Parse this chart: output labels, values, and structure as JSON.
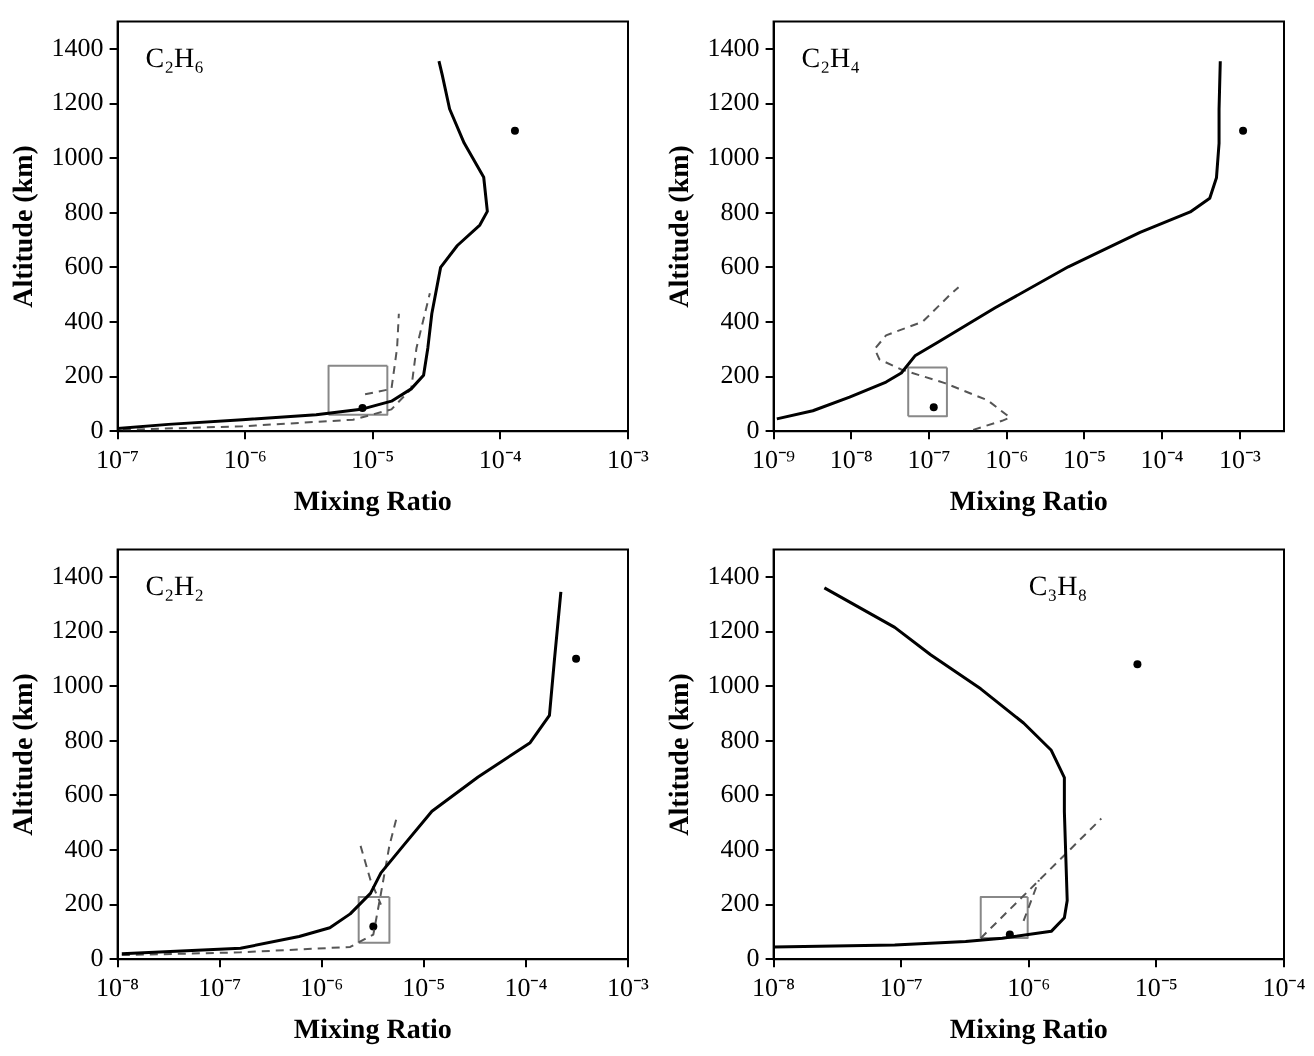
{
  "chart_data": [
    {
      "type": "line",
      "annotations": [
        "C₂H₆"
      ],
      "xlabel": "Mixing Ratio",
      "ylabel": "Altitude (km)",
      "log": "x",
      "xlim": [
        1e-07,
        0.001
      ],
      "xticks": [
        {
          "value": 1e-07,
          "label": "10⁻⁷"
        },
        {
          "value": 1e-06,
          "label": "10⁻⁶"
        },
        {
          "value": 1e-05,
          "label": "10⁻⁵"
        },
        {
          "value": 0.0001,
          "label": "10⁻⁴"
        },
        {
          "value": 0.001,
          "label": "10⁻³"
        }
      ],
      "ylim": [
        0,
        1500
      ],
      "yticks": [
        0,
        200,
        400,
        600,
        800,
        1000,
        1200,
        1400
      ],
      "grid": false,
      "legend": false,
      "series": [
        {
          "type": "line",
          "color": "#000000",
          "line_style": "solid",
          "x": [
            1e-07,
            2.5e-07,
            9.5e-07,
            3.6e-06,
            8.1e-06,
            1.4e-05,
            2e-05,
            2.5e-05,
            2.7e-05,
            2.9e-05,
            3.4e-05,
            4.6e-05,
            6.9e-05,
            7.9e-05,
            7.4e-05,
            5.2e-05,
            4e-05,
            3.5e-05,
            3.3e-05
          ],
          "values": [
            10,
            25,
            42,
            60,
            80,
            110,
            155,
            205,
            305,
            430,
            600,
            680,
            755,
            805,
            930,
            1055,
            1180,
            1305,
            1355
          ]
        },
        {
          "type": "line",
          "color": "#555555",
          "line_style": "dashed",
          "x": [
            1.1e-07,
            9.5e-07,
            7e-06,
            1.4e-05,
            2e-05,
            2.2e-05,
            2.8e-05
          ],
          "values": [
            5,
            18,
            42,
            80,
            155,
            305,
            505
          ]
        },
        {
          "type": "line",
          "color": "#555555",
          "line_style": "dashed",
          "x": [
            8.7e-06,
            1.4e-05,
            1.55e-05,
            1.6e-05
          ],
          "values": [
            135,
            155,
            305,
            430
          ]
        },
        {
          "type": "line",
          "color": "#888888",
          "line_style": "solid",
          "x": [
            4.5e-06,
            1.3e-05,
            1.3e-05
          ],
          "values": [
            60,
            60,
            240
          ]
        },
        {
          "type": "line",
          "color": "#888888",
          "line_style": "solid",
          "x": [
            4.5e-06,
            4.5e-06,
            1.3e-05
          ],
          "values": [
            60,
            240,
            240
          ]
        },
        {
          "type": "scatter",
          "color": "#000000",
          "marker": "circle",
          "x": [
            8.3e-06,
            0.00013
          ],
          "values": [
            85,
            1100
          ]
        }
      ]
    },
    {
      "type": "line",
      "annotations": [
        "C₂H₄"
      ],
      "xlabel": "Mixing Ratio",
      "ylabel": "Altitude (km)",
      "log": "x",
      "xlim": [
        1e-09,
        0.0037
      ],
      "xticks": [
        {
          "value": 1e-09,
          "label": "10⁻⁹"
        },
        {
          "value": 1e-08,
          "label": "10⁻⁸"
        },
        {
          "value": 1e-07,
          "label": "10⁻⁷"
        },
        {
          "value": 1e-06,
          "label": "10⁻⁶"
        },
        {
          "value": 1e-05,
          "label": "10⁻⁵"
        },
        {
          "value": 0.0001,
          "label": "10⁻⁴"
        },
        {
          "value": 0.001,
          "label": "10⁻³"
        }
      ],
      "ylim": [
        0,
        1500
      ],
      "yticks": [
        0,
        200,
        400,
        600,
        800,
        1000,
        1200,
        1400
      ],
      "grid": false,
      "legend": false,
      "series": [
        {
          "type": "line",
          "color": "#000000",
          "line_style": "solid",
          "x": [
            1.1e-09,
            3.2e-09,
            9.5e-09,
            2.8e-08,
            4.4e-08,
            6.6e-08,
            1.3e-07,
            7.1e-07,
            6.2e-06,
            5.2e-05,
            0.00023,
            0.00041,
            0.0005,
            0.00054,
            0.00054,
            0.00056
          ],
          "values": [
            45,
            75,
            125,
            180,
            213,
            276,
            326,
            452,
            602,
            728,
            803,
            853,
            928,
            1054,
            1179,
            1355
          ]
        },
        {
          "type": "line",
          "color": "#555555",
          "line_style": "dashed",
          "x": [
            3.7e-07,
            8.7e-07,
            1.1e-06,
            5.7e-07,
            1.6e-07,
            4.4e-08,
            2.3e-08,
            2e-08,
            2.8e-08,
            8.3e-08,
            1.9e-07,
            2.4e-07
          ],
          "values": [
            5,
            38,
            50,
            113,
            176,
            226,
            263,
            301,
            351,
            401,
            502,
            527
          ]
        },
        {
          "type": "line",
          "color": "#888888",
          "line_style": "solid",
          "x": [
            5.4e-08,
            1.7e-07,
            1.7e-07
          ],
          "values": [
            55,
            55,
            233
          ]
        },
        {
          "type": "line",
          "color": "#888888",
          "line_style": "solid",
          "x": [
            5.4e-08,
            5.4e-08,
            1.7e-07
          ],
          "values": [
            55,
            233,
            233
          ]
        },
        {
          "type": "scatter",
          "color": "#000000",
          "marker": "circle",
          "x": [
            1.15e-07,
            0.0011
          ],
          "values": [
            88,
            1100
          ]
        }
      ]
    },
    {
      "type": "line",
      "annotations": [
        "C₂H₂"
      ],
      "xlabel": "Mixing Ratio",
      "ylabel": "Altitude (km)",
      "log": "x",
      "xlim": [
        1e-08,
        0.001
      ],
      "xticks": [
        {
          "value": 1e-08,
          "label": "10⁻⁸"
        },
        {
          "value": 1e-07,
          "label": "10⁻⁷"
        },
        {
          "value": 1e-06,
          "label": "10⁻⁶"
        },
        {
          "value": 1e-05,
          "label": "10⁻⁵"
        },
        {
          "value": 0.0001,
          "label": "10⁻⁴"
        },
        {
          "value": 0.001,
          "label": "10⁻³"
        }
      ],
      "ylim": [
        0,
        1500
      ],
      "yticks": [
        0,
        200,
        400,
        600,
        800,
        1000,
        1200,
        1400
      ],
      "grid": false,
      "legend": false,
      "series": [
        {
          "type": "line",
          "color": "#000000",
          "line_style": "solid",
          "x": [
            1.1e-08,
            1.6e-07,
            6e-07,
            1.2e-06,
            1.9e-06,
            3e-06,
            3.8e-06,
            6.3e-06,
            1.2e-05,
            3.4e-05,
            0.00011,
            0.00017,
            0.00019,
            0.00022
          ],
          "values": [
            20,
            40,
            83,
            115,
            166,
            241,
            316,
            416,
            542,
            667,
            793,
            893,
            1094,
            1345
          ]
        },
        {
          "type": "line",
          "color": "#555555",
          "line_style": "dashed",
          "x": [
            1.1e-08,
            1.6e-07,
            1.9e-06,
            3.2e-06,
            3.8e-06,
            4.6e-06,
            5.4e-06
          ],
          "values": [
            15,
            25,
            45,
            90,
            241,
            416,
            517
          ]
        },
        {
          "type": "line",
          "color": "#555555",
          "line_style": "dashed",
          "x": [
            2.4e-06,
            3e-06,
            3.8e-06
          ],
          "values": [
            415,
            290,
            200
          ]
        },
        {
          "type": "line",
          "color": "#888888",
          "line_style": "solid",
          "x": [
            2.3e-06,
            4.6e-06,
            4.6e-06
          ],
          "values": [
            60,
            60,
            228
          ]
        },
        {
          "type": "line",
          "color": "#888888",
          "line_style": "solid",
          "x": [
            2.3e-06,
            2.3e-06,
            4.6e-06
          ],
          "values": [
            60,
            228,
            228
          ]
        },
        {
          "type": "scatter",
          "color": "#000000",
          "marker": "circle",
          "x": [
            3.2e-06,
            0.00031
          ],
          "values": [
            120,
            1100
          ]
        }
      ]
    },
    {
      "type": "line",
      "annotations": [
        "C₃H₈"
      ],
      "xlabel": "Mixing Ratio",
      "ylabel": "Altitude (km)",
      "log": "x",
      "xlim": [
        1e-08,
        0.0001
      ],
      "xticks": [
        {
          "value": 1e-08,
          "label": "10⁻⁸"
        },
        {
          "value": 1e-07,
          "label": "10⁻⁷"
        },
        {
          "value": 1e-06,
          "label": "10⁻⁶"
        },
        {
          "value": 1e-05,
          "label": "10⁻⁵"
        },
        {
          "value": 0.0001,
          "label": "10⁻⁴"
        }
      ],
      "ylim": [
        0,
        1500
      ],
      "yticks": [
        0,
        200,
        400,
        600,
        800,
        1000,
        1200,
        1400
      ],
      "grid": false,
      "legend": false,
      "series": [
        {
          "type": "line",
          "color": "#000000",
          "line_style": "solid",
          "x": [
            1e-08,
            8.9e-08,
            3.2e-07,
            6.2e-07,
            1.5e-06,
            1.9e-06,
            2e-06,
            1.9e-06,
            1.9e-06,
            1.5e-06,
            9.1e-07,
            4.2e-07,
            1.7e-07,
            8.9e-08,
            2.5e-08
          ],
          "values": [
            45,
            52,
            65,
            77,
            102,
            152,
            215,
            540,
            665,
            765,
            865,
            990,
            1115,
            1215,
            1360
          ]
        },
        {
          "type": "line",
          "color": "#555555",
          "line_style": "dashed",
          "x": [
            4.2e-07,
            3.7e-06
          ],
          "values": [
            77,
            515
          ]
        },
        {
          "type": "line",
          "color": "#555555",
          "line_style": "dashed",
          "x": [
            9.1e-07,
            1.2e-06
          ],
          "values": [
            140,
            290
          ]
        },
        {
          "type": "line",
          "color": "#888888",
          "line_style": "solid",
          "x": [
            4.2e-07,
            9.8e-07,
            9.8e-07
          ],
          "values": [
            78,
            78,
            228
          ]
        },
        {
          "type": "line",
          "color": "#888888",
          "line_style": "solid",
          "x": [
            4.2e-07,
            4.2e-07,
            9.8e-07
          ],
          "values": [
            78,
            228,
            228
          ]
        },
        {
          "type": "scatter",
          "color": "#000000",
          "marker": "circle",
          "x": [
            7.1e-07,
            7.1e-06
          ],
          "values": [
            90,
            1080
          ]
        }
      ]
    }
  ]
}
